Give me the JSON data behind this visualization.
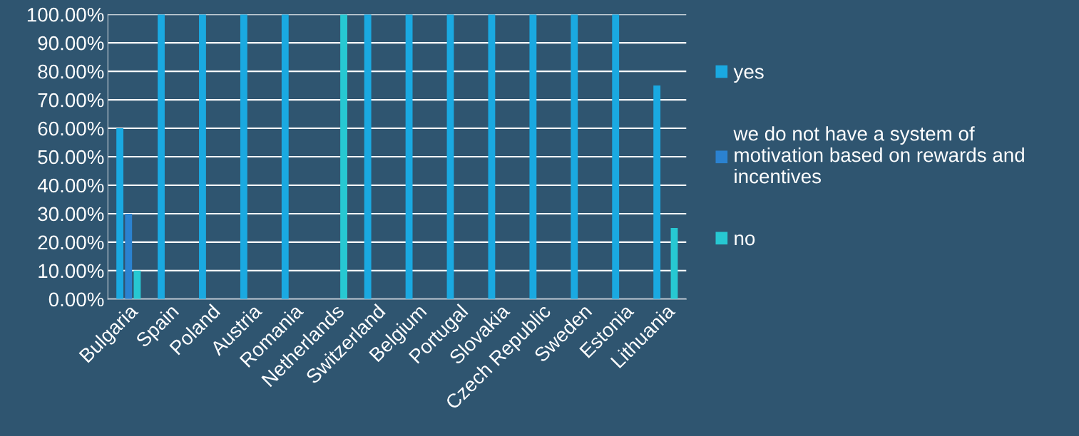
{
  "chart_data": {
    "type": "bar",
    "categories": [
      "Bulgaria",
      "Spain",
      "Poland",
      "Austria",
      "Romania",
      "Netherlands",
      "Switzerland",
      "Belgium",
      "Portugal",
      "Slovakia",
      "Czech Republic",
      "Sweden",
      "Estonia",
      "Lithuania"
    ],
    "series": [
      {
        "name": "yes",
        "color": "#1aa9e1",
        "values": [
          60,
          100,
          100,
          100,
          100,
          null,
          100,
          100,
          100,
          100,
          100,
          100,
          100,
          75
        ]
      },
      {
        "name": "we do not have a system of\nmotivation based on rewards and\nincentives",
        "color": "#2b82d0",
        "values": [
          30,
          null,
          null,
          null,
          null,
          null,
          null,
          null,
          null,
          null,
          null,
          null,
          null,
          null
        ]
      },
      {
        "name": "no",
        "color": "#27c8d2",
        "values": [
          10,
          null,
          null,
          null,
          null,
          100,
          null,
          null,
          null,
          null,
          null,
          null,
          null,
          25
        ]
      }
    ],
    "ylim": [
      0,
      100
    ],
    "yticks": [
      {
        "value": 0,
        "label": "0.00%"
      },
      {
        "value": 10,
        "label": "10.00%"
      },
      {
        "value": 20,
        "label": "20.00%"
      },
      {
        "value": 30,
        "label": "30.00%"
      },
      {
        "value": 40,
        "label": "40.00%"
      },
      {
        "value": 50,
        "label": "50.00%"
      },
      {
        "value": 60,
        "label": "60.00%"
      },
      {
        "value": 70,
        "label": "70.00%"
      },
      {
        "value": 80,
        "label": "80.00%"
      },
      {
        "value": 90,
        "label": "90.00%"
      },
      {
        "value": 100,
        "label": "100.00%"
      }
    ],
    "grid": "y",
    "legend": "right"
  }
}
